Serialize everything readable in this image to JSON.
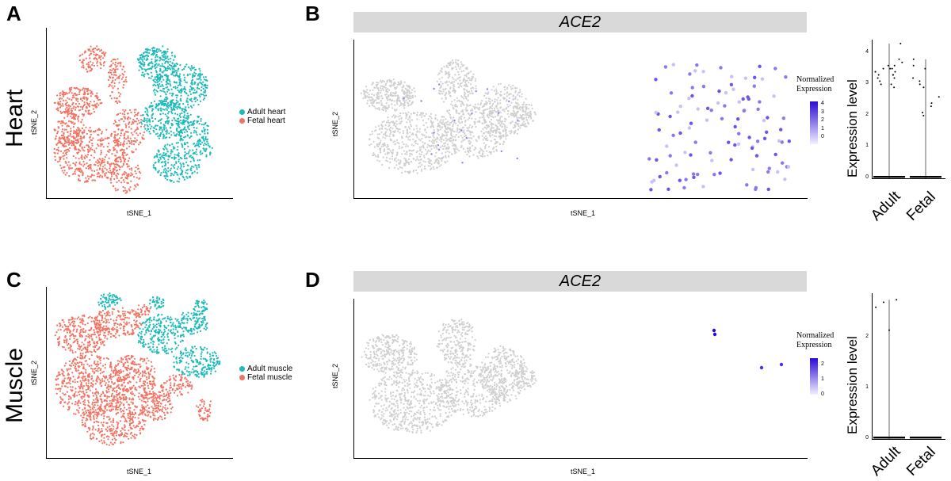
{
  "panels": {
    "A": {
      "letter": "A",
      "row_label": "Heart"
    },
    "B": {
      "letter": "B"
    },
    "C": {
      "letter": "C",
      "row_label": "Muscle"
    },
    "D": {
      "letter": "D"
    }
  },
  "colors": {
    "adult": "#1fb9b9",
    "fetal": "#f07363",
    "gray": "#cfcfcf",
    "expr_low": "#f2f0ff",
    "expr_high": "#2a0bd4"
  },
  "chart_data": [
    {
      "id": "A",
      "type": "scatter",
      "title": "",
      "xlabel": "tSNE_1",
      "ylabel": "tSNE_2",
      "legend": {
        "position": "right",
        "entries": [
          "Adult heart",
          "Fetal heart"
        ]
      },
      "series": [
        {
          "name": "Adult heart",
          "color": "adult"
        },
        {
          "name": "Fetal heart",
          "color": "fetal"
        }
      ]
    },
    {
      "id": "B",
      "type": "scatter",
      "title": "ACE2",
      "xlabel": "tSNE_1",
      "ylabel": "tSNE_2",
      "colorbar": {
        "title_line1": "Normalized",
        "title_line2": "Expression",
        "ticks": [
          "4",
          "3",
          "2",
          "1",
          "0"
        ]
      }
    },
    {
      "id": "B-violin",
      "type": "scatter",
      "ylabel": "Expression level",
      "categories": [
        "Adult",
        "Fetal"
      ],
      "yticks": [
        "0",
        "1",
        "2",
        "3",
        "4"
      ],
      "ylim": [
        0,
        4.3
      ],
      "series": [
        {
          "name": "Adult",
          "values": [
            4.3,
            3.8,
            3.7,
            3.6,
            3.6,
            3.5,
            3.5,
            3.5,
            3.4,
            3.4,
            3.4,
            3.3,
            3.3,
            3.3,
            3.2,
            3.2,
            3.1,
            3.0,
            3.0,
            2.9,
            0
          ]
        },
        {
          "name": "Fetal",
          "values": [
            3.8,
            3.6,
            3.5,
            3.2,
            3.1,
            3.0,
            2.9,
            2.6,
            2.4,
            2.3,
            2.1,
            2.0,
            0
          ]
        }
      ]
    },
    {
      "id": "C",
      "type": "scatter",
      "title": "",
      "xlabel": "tSNE_1",
      "ylabel": "tSNE_2",
      "legend": {
        "position": "right",
        "entries": [
          "Adult muscle",
          "Fetal muscle"
        ]
      },
      "series": [
        {
          "name": "Adult muscle",
          "color": "adult"
        },
        {
          "name": "Fetal muscle",
          "color": "fetal"
        }
      ]
    },
    {
      "id": "D",
      "type": "scatter",
      "title": "ACE2",
      "xlabel": "tSNE_1",
      "ylabel": "tSNE_2",
      "colorbar": {
        "title_line1": "Normalized",
        "title_line2": "Expression",
        "ticks": [
          "2",
          "1",
          "0"
        ]
      }
    },
    {
      "id": "D-violin",
      "type": "scatter",
      "ylabel": "Expression level",
      "categories": [
        "Adult",
        "Fetal"
      ],
      "yticks": [
        "0",
        "1",
        "2"
      ],
      "ylim": [
        0,
        2.8
      ],
      "series": [
        {
          "name": "Adult",
          "values": [
            2.7,
            2.75,
            2.6,
            2.15,
            0
          ]
        },
        {
          "name": "Fetal",
          "values": [
            0
          ]
        }
      ]
    }
  ]
}
